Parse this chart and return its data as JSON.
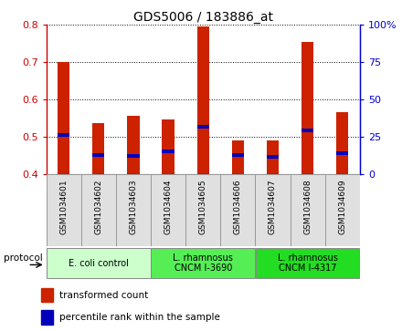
{
  "title": "GDS5006 / 183886_at",
  "samples": [
    "GSM1034601",
    "GSM1034602",
    "GSM1034603",
    "GSM1034604",
    "GSM1034605",
    "GSM1034606",
    "GSM1034607",
    "GSM1034608",
    "GSM1034609"
  ],
  "bar_tops": [
    0.7,
    0.535,
    0.555,
    0.545,
    0.795,
    0.49,
    0.49,
    0.755,
    0.565
  ],
  "bar_bottom": 0.4,
  "blue_marks": [
    0.505,
    0.45,
    0.448,
    0.46,
    0.527,
    0.45,
    0.445,
    0.516,
    0.456
  ],
  "ylim": [
    0.4,
    0.8
  ],
  "yticks_left": [
    0.4,
    0.5,
    0.6,
    0.7,
    0.8
  ],
  "yticks_right": [
    0,
    25,
    50,
    75,
    100
  ],
  "left_color": "#cc0000",
  "right_color": "#0000cc",
  "bar_color": "#cc2200",
  "blue_color": "#0000bb",
  "groups": [
    {
      "label": "E. coli control",
      "start": 0,
      "end": 3,
      "color": "#ccffcc"
    },
    {
      "label": "L. rhamnosus\nCNCM I-3690",
      "start": 3,
      "end": 6,
      "color": "#66ee66"
    },
    {
      "label": "L. rhamnosus\nCNCM I-4317",
      "start": 6,
      "end": 9,
      "color": "#33dd33"
    }
  ],
  "protocol_label": "protocol",
  "legend_red": "transformed count",
  "legend_blue": "percentile rank within the sample",
  "bar_width": 0.35
}
